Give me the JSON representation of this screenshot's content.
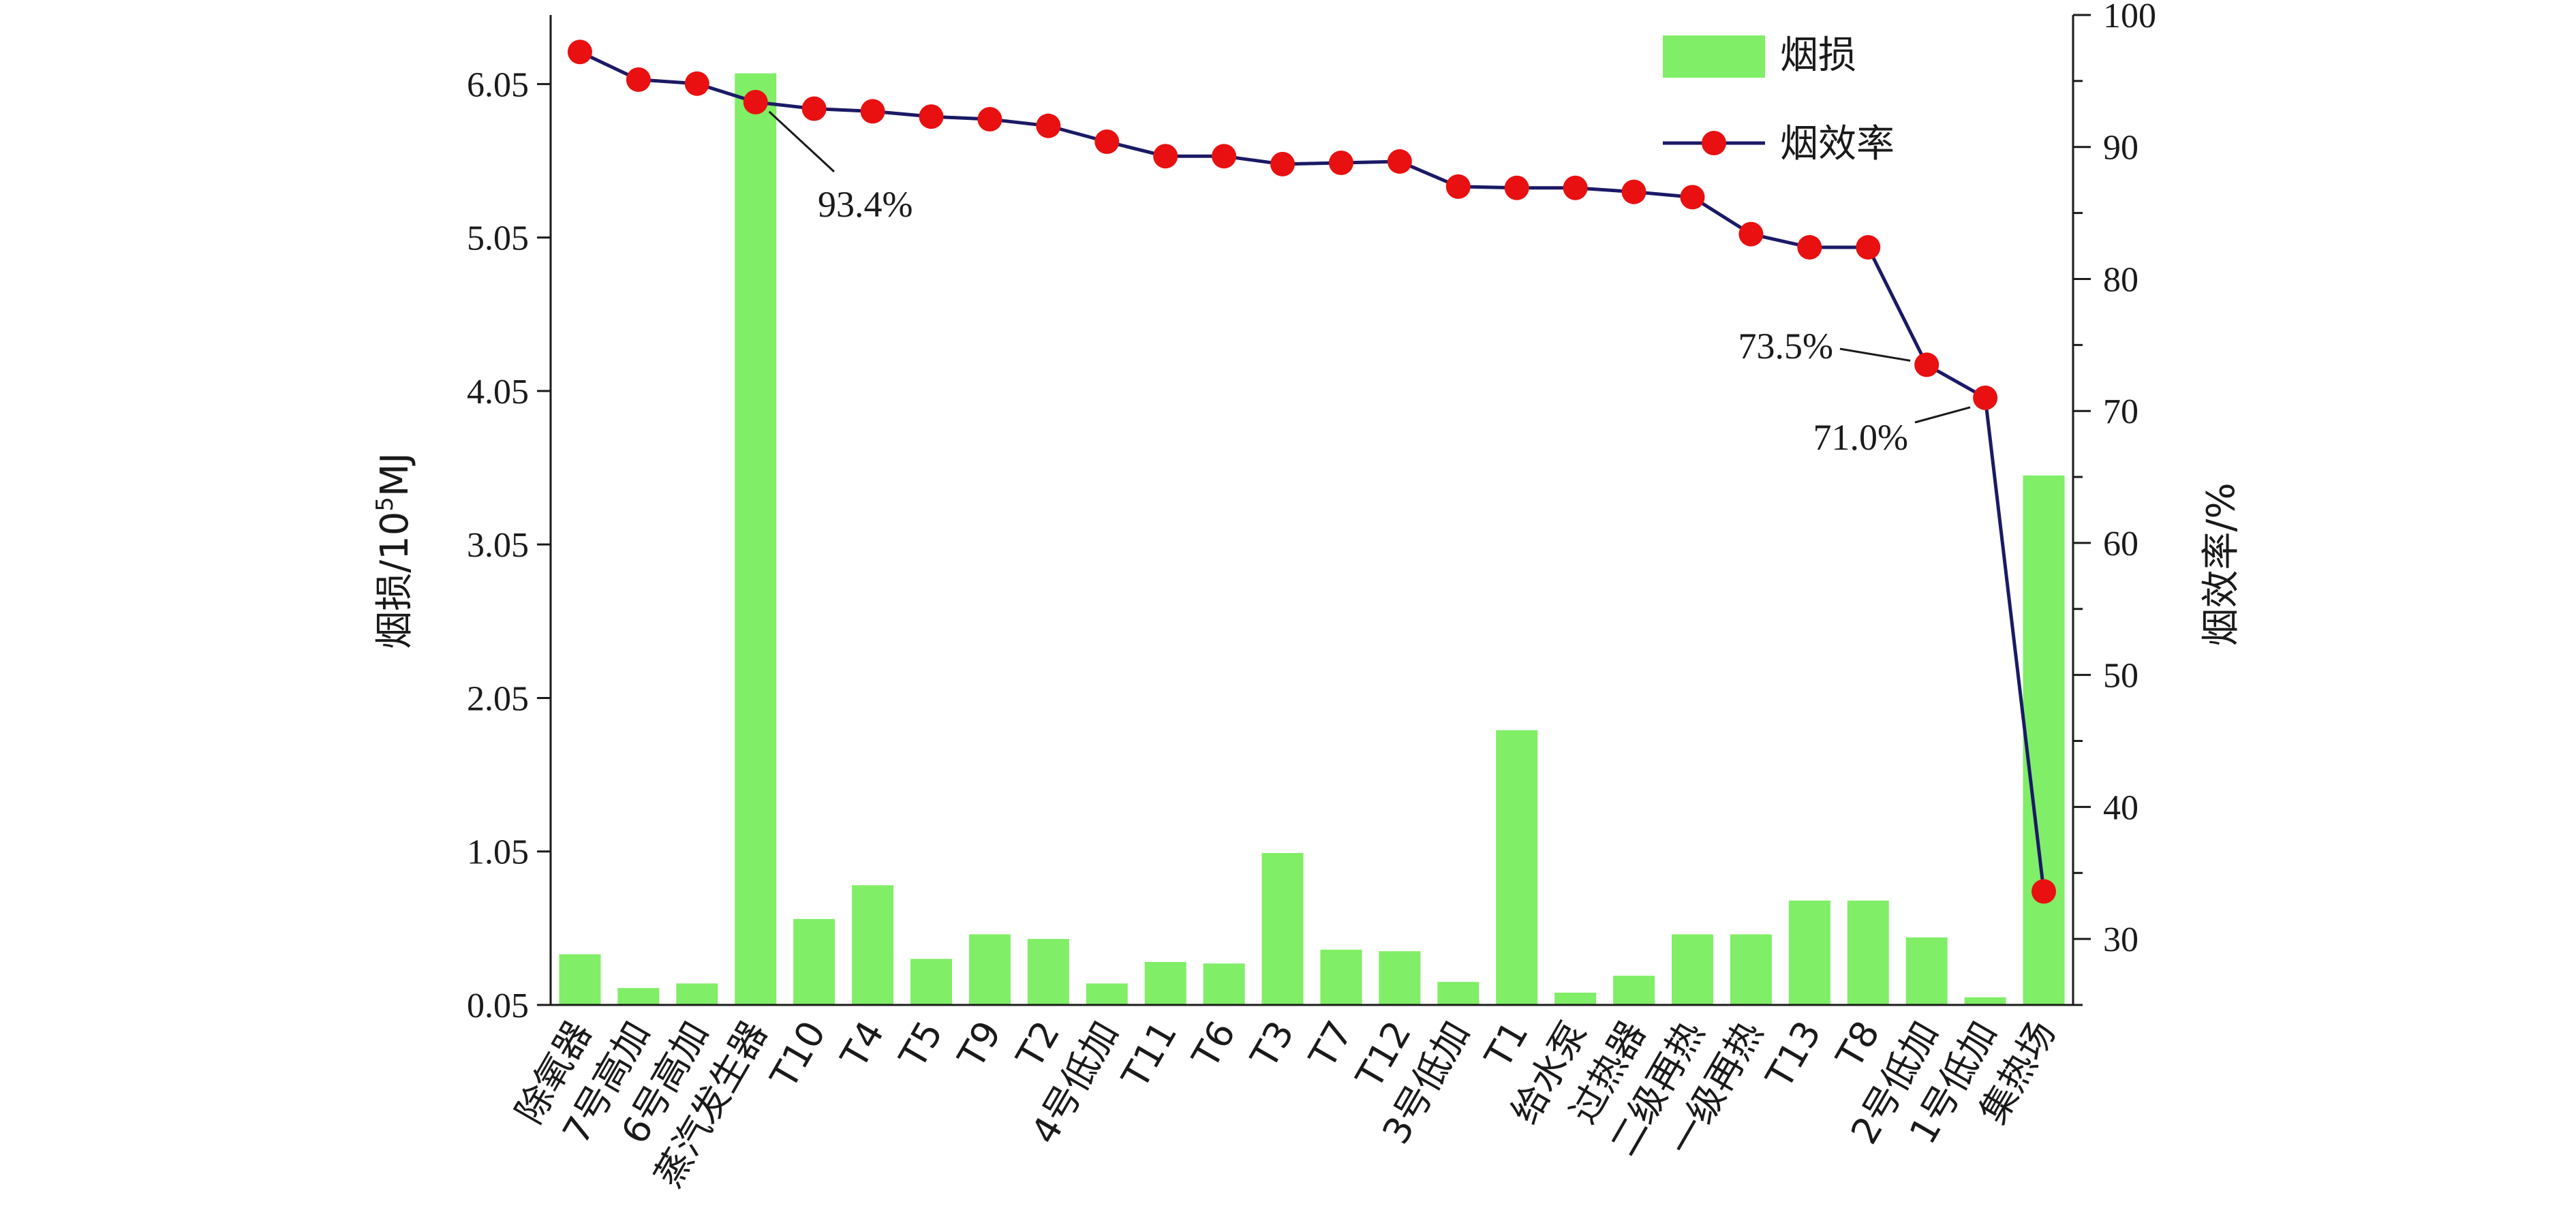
{
  "chart_data": {
    "type": "bar+line",
    "categories": [
      "除氧器",
      "7号高加",
      "6号高加",
      "蒸汽发生器",
      "T10",
      "T4",
      "T5",
      "T9",
      "T2",
      "4号低加",
      "T11",
      "T6",
      "T3",
      "T7",
      "T12",
      "3号低加",
      "T1",
      "给水泵",
      "过热器",
      "二级再热",
      "一级再热",
      "T13",
      "T8",
      "2号低加",
      "1号低加",
      "集热场"
    ],
    "series": [
      {
        "name": "烟损",
        "type": "bar",
        "axis": "left",
        "color": "#80ee66",
        "values": [
          0.38,
          0.16,
          0.19,
          6.12,
          0.61,
          0.83,
          0.35,
          0.51,
          0.48,
          0.19,
          0.33,
          0.32,
          1.04,
          0.41,
          0.4,
          0.2,
          1.84,
          0.13,
          0.24,
          0.51,
          0.51,
          0.73,
          0.73,
          0.49,
          0.1,
          3.5
        ]
      },
      {
        "name": "烟效率",
        "type": "line",
        "axis": "right",
        "line_color": "#1a1a66",
        "marker_color": "#e81010",
        "values": [
          97.2,
          95.1,
          94.8,
          93.4,
          92.9,
          92.7,
          92.3,
          92.1,
          91.6,
          90.4,
          89.3,
          89.3,
          88.7,
          88.8,
          88.9,
          87.0,
          86.9,
          86.9,
          86.6,
          86.2,
          83.4,
          82.4,
          82.4,
          73.5,
          71.0,
          33.6
        ]
      }
    ],
    "left_axis": {
      "label_main": "烟损/10",
      "label_sup": "5",
      "label_unit": "MJ",
      "ylim": [
        0.05,
        6.5
      ],
      "ticks": [
        0.05,
        1.05,
        2.05,
        3.05,
        4.05,
        5.05,
        6.05
      ],
      "tick_labels": [
        "0.05",
        "1.05",
        "2.05",
        "3.05",
        "4.05",
        "5.05",
        "6.05"
      ]
    },
    "right_axis": {
      "label": "烟效率/%",
      "ylim": [
        25,
        100
      ],
      "ticks": [
        30,
        40,
        50,
        60,
        70,
        80,
        90,
        100
      ],
      "tick_labels": [
        "30",
        "40",
        "50",
        "60",
        "70",
        "80",
        "90",
        "100"
      ]
    },
    "annotations": [
      {
        "text": "93.4%",
        "point_index": 3
      },
      {
        "text": "73.5%",
        "point_index": 23
      },
      {
        "text": "71.0%",
        "point_index": 24
      }
    ],
    "legend": {
      "position": "top-right",
      "entries": [
        "烟损",
        "烟效率"
      ]
    },
    "grid": false
  }
}
